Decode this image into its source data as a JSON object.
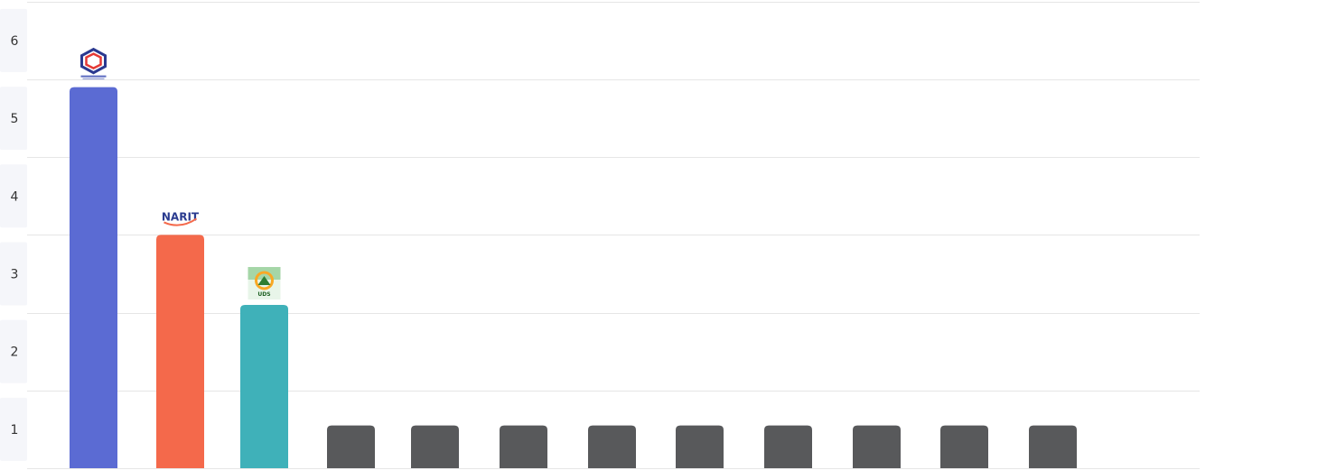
{
  "chart_data": {
    "type": "bar",
    "title": "",
    "xlabel": "",
    "ylabel": "",
    "ylim": [
      0,
      6
    ],
    "yticks": [
      "1",
      "2",
      "3",
      "4",
      "5",
      "6"
    ],
    "grid": true,
    "legend": "none",
    "categories": [
      "",
      "",
      "",
      "",
      "",
      "",
      "",
      "",
      "",
      "",
      "",
      ""
    ],
    "values": [
      4.9,
      3.0,
      2.1,
      0.55,
      0.55,
      0.55,
      0.55,
      0.55,
      0.55,
      0.55,
      0.55,
      0.55
    ],
    "colors": [
      "#5b6bd3",
      "#f4694b",
      "#3fb1b9",
      "#58595b",
      "#58595b",
      "#58595b",
      "#58595b",
      "#58595b",
      "#58595b",
      "#58595b",
      "#58595b",
      "#58595b"
    ],
    "bar_logos": [
      "emblem-icon",
      "narit-logo",
      "uds-logo",
      "",
      "",
      "",
      "",
      "",
      "",
      "",
      "",
      ""
    ],
    "logo_text": {
      "narit": "NARIT",
      "uds": "UDS"
    }
  }
}
